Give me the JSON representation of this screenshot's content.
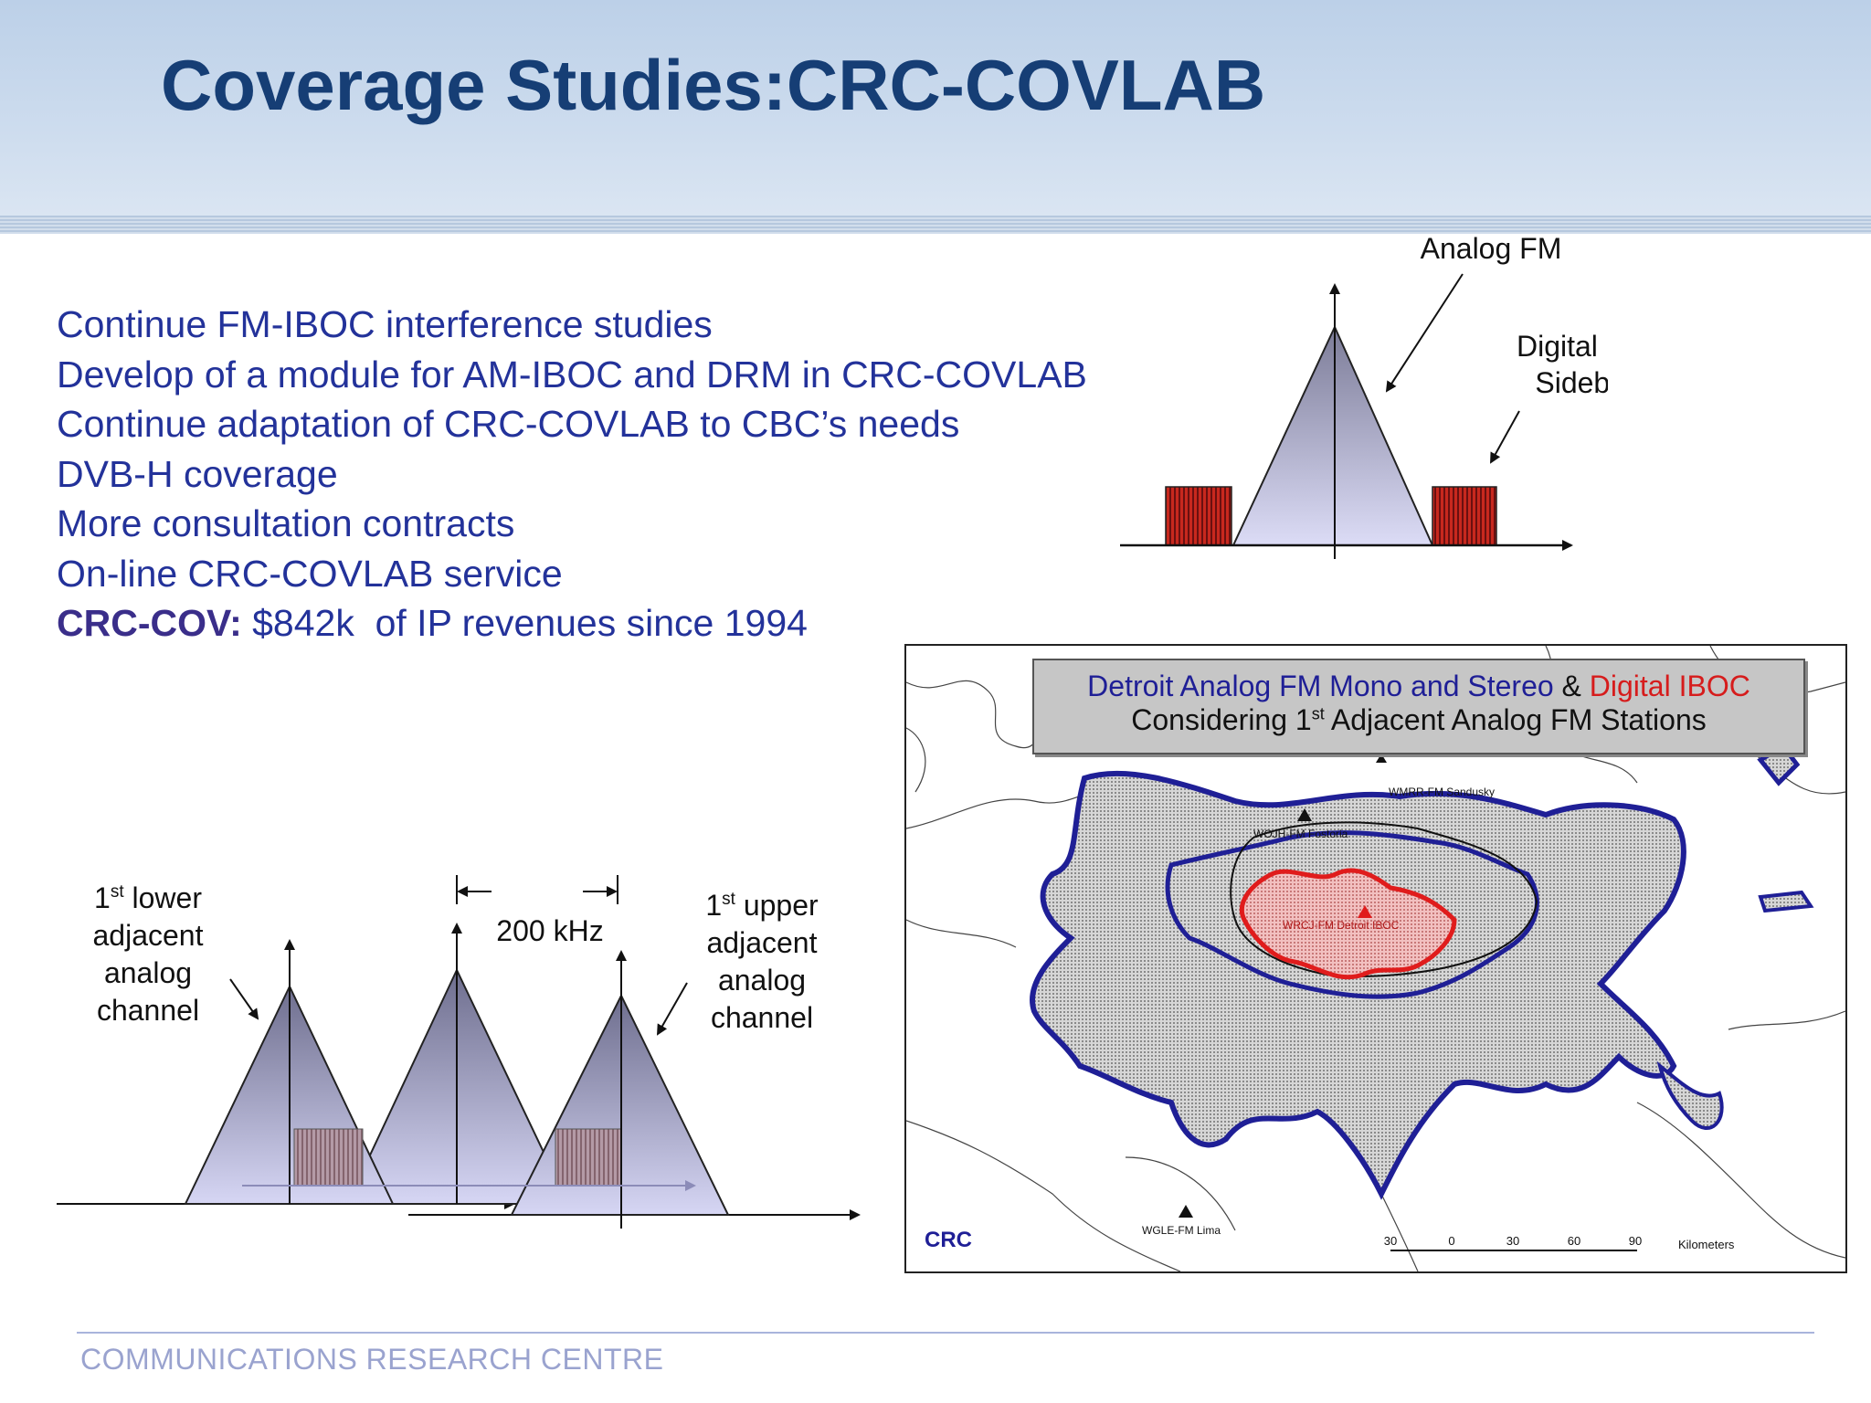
{
  "slide": {
    "title": "Coverage Studies:CRC-COVLAB",
    "bullets": [
      "Continue FM-IBOC interference studies",
      "Develop of a module for AM-IBOC and DRM in CRC-COVLAB",
      "Continue adaptation of CRC-COVLAB to CBC’s needs",
      "DVB-H coverage",
      "More consultation contracts",
      "On-line CRC-COVLAB service"
    ],
    "revenue_label": "CRC-COV:",
    "revenue_text": " $842k  of IP revenues since 1994",
    "footer": "COMMUNICATIONS RESEARCH CENTRE"
  },
  "spectrum_diagram": {
    "analog_label": "Analog FM",
    "digital_label_line1": "Digital IBOC",
    "digital_label_line2": "Sideband"
  },
  "adjacent_diagram": {
    "lower_line1_num": "1",
    "lower_line1_sup": "st",
    "lower_line1_rest": " lower",
    "lower_line2": "adjacent",
    "lower_line3": "analog",
    "lower_line4": "channel",
    "spacing_label": "200 kHz",
    "upper_line1_num": "1",
    "upper_line1_sup": "st",
    "upper_line1_rest": " upper",
    "upper_line2": "adjacent",
    "upper_line3": "analog",
    "upper_line4": "channel"
  },
  "map": {
    "legend_blue": "Detroit Analog FM Mono and Stereo",
    "legend_amp": " & ",
    "legend_red": "Digital IBOC",
    "legend_line2_pre": "Considering 1",
    "legend_line2_sup": "st",
    "legend_line2_post": " Adjacent Analog FM Stations",
    "station_sandusky": "WMRR-FM Sandusky",
    "station_left": "WOJH-FM Fostoria",
    "station_detroit": "WRCJ-FM Detroit IBOC",
    "station_lima": "WGLE-FM Lima",
    "logo": "CRC",
    "scale_ticks": [
      "30",
      "0",
      "30",
      "60",
      "90"
    ],
    "scale_unit": "Kilometers",
    "colors": {
      "analog": "#1f1f96",
      "digital": "#e01c1c",
      "fill": "#c8c8c8"
    }
  }
}
